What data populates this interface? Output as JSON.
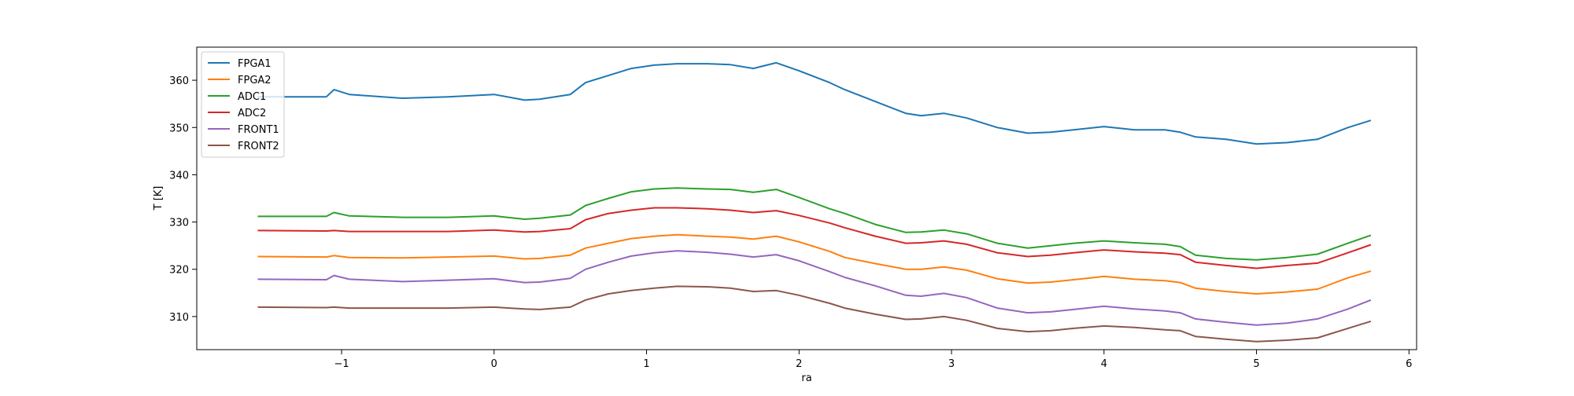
{
  "chart_data": {
    "type": "line",
    "title": "",
    "xlabel": "ra",
    "ylabel": "T [K]",
    "xlim": [
      -1.95,
      6.05
    ],
    "ylim": [
      303.0,
      367.0
    ],
    "xticks": [
      -1,
      0,
      1,
      2,
      3,
      4,
      5,
      6
    ],
    "yticks": [
      310,
      320,
      330,
      340,
      350,
      360
    ],
    "grid": false,
    "legend_position": "top-left",
    "x": [
      -1.55,
      -1.1,
      -1.05,
      -0.95,
      -0.6,
      -0.3,
      0.0,
      0.2,
      0.3,
      0.5,
      0.6,
      0.75,
      0.9,
      1.05,
      1.2,
      1.4,
      1.55,
      1.7,
      1.85,
      2.0,
      2.2,
      2.3,
      2.5,
      2.7,
      2.8,
      2.95,
      3.1,
      3.3,
      3.5,
      3.65,
      3.8,
      4.0,
      4.2,
      4.4,
      4.5,
      4.6,
      4.8,
      5.0,
      5.2,
      5.4,
      5.6,
      5.75
    ],
    "series": [
      {
        "name": "FPGA1",
        "color": "#1f77b4",
        "values": [
          356.5,
          356.5,
          358.0,
          357.0,
          356.2,
          356.5,
          357.0,
          355.8,
          356.0,
          357.0,
          359.5,
          361.0,
          362.5,
          363.2,
          363.5,
          363.5,
          363.3,
          362.5,
          363.7,
          362.0,
          359.5,
          358.0,
          355.5,
          353.0,
          352.5,
          353.0,
          352.0,
          350.0,
          348.8,
          349.0,
          349.5,
          350.2,
          349.5,
          349.5,
          349.0,
          348.0,
          347.5,
          346.5,
          346.8,
          347.5,
          350.0,
          351.5
        ]
      },
      {
        "name": "FPGA2",
        "color": "#ff7f0e",
        "values": [
          322.7,
          322.6,
          322.9,
          322.5,
          322.4,
          322.6,
          322.8,
          322.2,
          322.3,
          323.0,
          324.5,
          325.5,
          326.5,
          327.0,
          327.3,
          327.0,
          326.8,
          326.4,
          327.0,
          325.8,
          323.8,
          322.5,
          321.2,
          320.0,
          320.0,
          320.5,
          319.8,
          318.0,
          317.1,
          317.3,
          317.8,
          318.5,
          317.9,
          317.6,
          317.2,
          316.0,
          315.3,
          314.8,
          315.2,
          315.8,
          318.2,
          319.6
        ]
      },
      {
        "name": "ADC1",
        "color": "#2ca02c",
        "values": [
          331.2,
          331.2,
          332.0,
          331.3,
          331.0,
          331.0,
          331.3,
          330.6,
          330.8,
          331.5,
          333.5,
          335.0,
          336.4,
          337.0,
          337.2,
          337.0,
          336.9,
          336.3,
          336.9,
          335.2,
          332.8,
          331.8,
          329.5,
          327.8,
          327.9,
          328.3,
          327.5,
          325.5,
          324.5,
          325.0,
          325.5,
          326.0,
          325.6,
          325.3,
          324.8,
          323.0,
          322.3,
          322.0,
          322.5,
          323.2,
          325.5,
          327.2
        ]
      },
      {
        "name": "ADC2",
        "color": "#d62728",
        "values": [
          328.2,
          328.1,
          328.2,
          328.0,
          328.0,
          328.0,
          328.3,
          327.9,
          328.0,
          328.6,
          330.5,
          331.8,
          332.5,
          333.0,
          333.0,
          332.8,
          332.5,
          332.0,
          332.4,
          331.4,
          329.8,
          328.8,
          327.0,
          325.5,
          325.6,
          326.0,
          325.3,
          323.5,
          322.7,
          323.0,
          323.5,
          324.1,
          323.7,
          323.4,
          323.1,
          321.5,
          320.8,
          320.2,
          320.8,
          321.3,
          323.5,
          325.2
        ]
      },
      {
        "name": "FRONT1",
        "color": "#9467bd",
        "values": [
          317.9,
          317.8,
          318.7,
          317.9,
          317.4,
          317.7,
          318.0,
          317.2,
          317.3,
          318.1,
          320.0,
          321.5,
          322.8,
          323.5,
          323.9,
          323.6,
          323.2,
          322.6,
          323.1,
          321.8,
          319.5,
          318.3,
          316.5,
          314.5,
          314.3,
          314.9,
          314.0,
          311.8,
          310.8,
          311.0,
          311.5,
          312.2,
          311.6,
          311.2,
          310.8,
          309.5,
          308.8,
          308.2,
          308.6,
          309.5,
          311.6,
          313.5
        ]
      },
      {
        "name": "FRONT2",
        "color": "#8c564b",
        "values": [
          312.0,
          311.9,
          312.0,
          311.8,
          311.8,
          311.8,
          312.0,
          311.6,
          311.5,
          312.0,
          313.5,
          314.8,
          315.5,
          316.0,
          316.4,
          316.3,
          316.0,
          315.3,
          315.5,
          314.5,
          312.8,
          311.8,
          310.5,
          309.4,
          309.5,
          310.0,
          309.2,
          307.5,
          306.8,
          307.0,
          307.5,
          308.0,
          307.7,
          307.2,
          307.0,
          305.8,
          305.2,
          304.7,
          305.0,
          305.5,
          307.5,
          309.0
        ]
      }
    ]
  }
}
